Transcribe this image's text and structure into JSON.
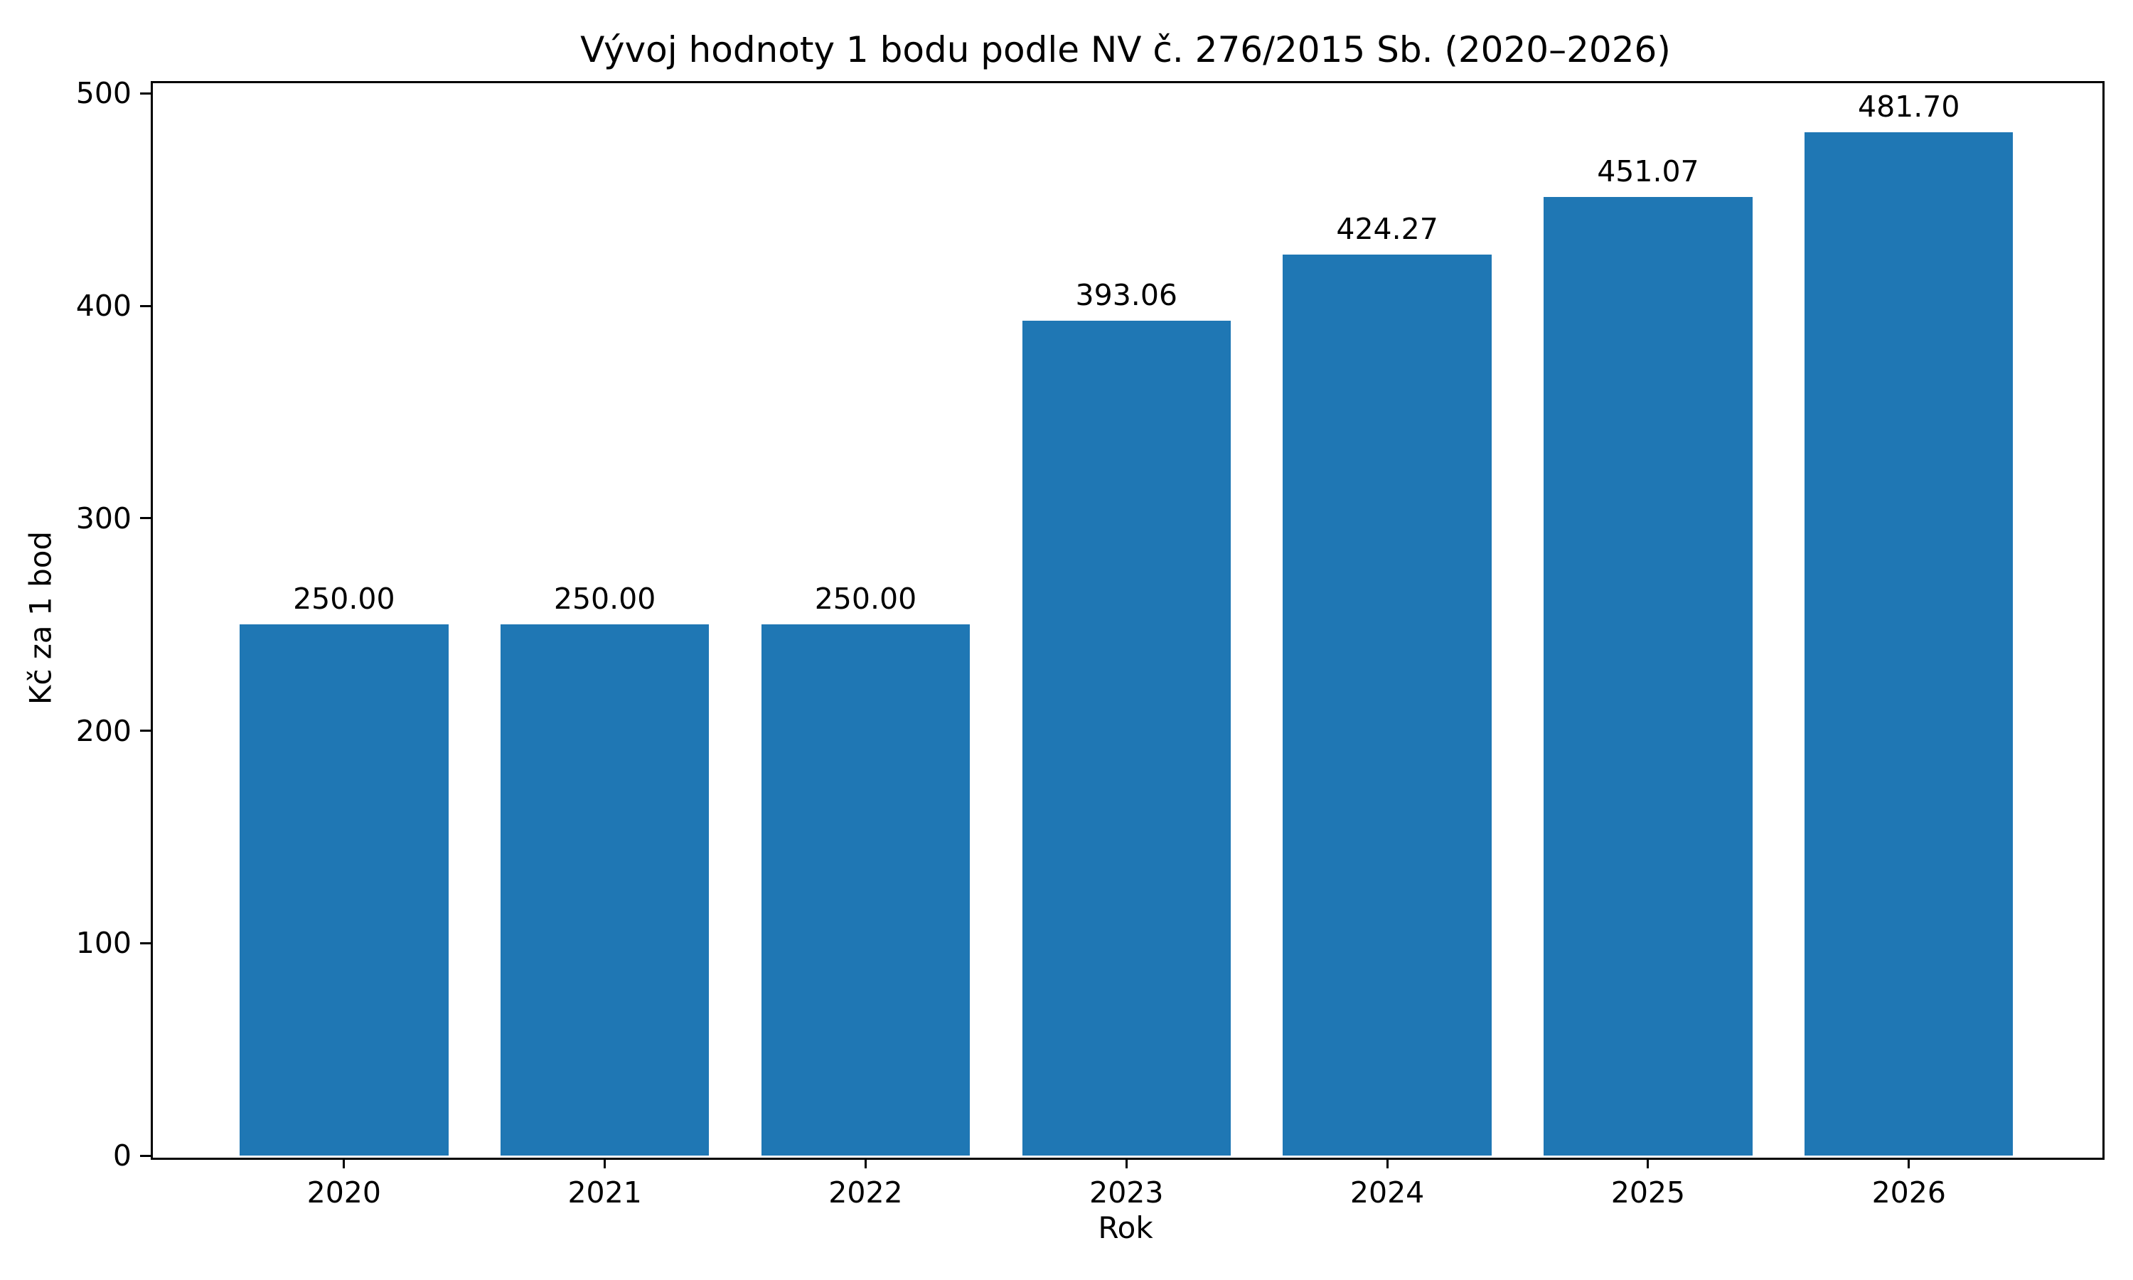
{
  "chart_data": {
    "type": "bar",
    "title": "Vývoj hodnoty 1 bodu podle NV č. 276/2015 Sb. (2020–2026)",
    "xlabel": "Rok",
    "ylabel": "Kč za 1 bod",
    "categories": [
      "2020",
      "2021",
      "2022",
      "2023",
      "2024",
      "2025",
      "2026"
    ],
    "values": [
      250.0,
      250.0,
      250.0,
      393.06,
      424.27,
      451.07,
      481.7
    ],
    "bar_labels": [
      "250.00",
      "250.00",
      "250.00",
      "393.06",
      "424.27",
      "451.07",
      "481.70"
    ],
    "yticks": [
      0,
      100,
      200,
      300,
      400,
      500
    ],
    "ylim": [
      0,
      505.8
    ],
    "bar_color": "#1f77b4",
    "text_color": "#000000",
    "grid": false,
    "legend": "none",
    "bar_width_fraction": 0.8
  }
}
